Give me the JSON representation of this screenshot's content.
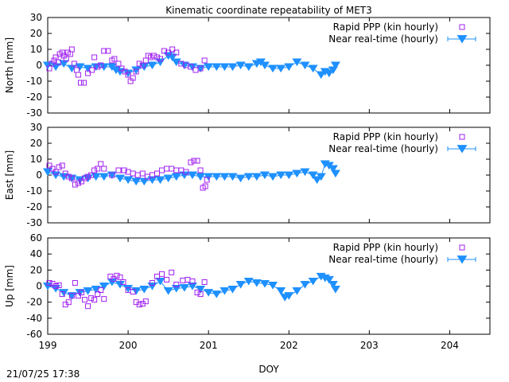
{
  "title": "Kinematic coordinate repeatability of MET3",
  "timestamp": "21/07/25 17:38",
  "xlabel": "DOY",
  "legend": {
    "ppp": "Rapid PPP (kin hourly)",
    "nrt": "Near real-time (hourly)"
  },
  "colors": {
    "ppp": "#a020f0",
    "nrt": "#1e90ff",
    "axis": "#000000"
  },
  "chart_data": [
    {
      "type": "scatter",
      "ylabel": "North [mm]",
      "xlim": [
        199,
        204.5
      ],
      "ylim": [
        -30,
        30
      ],
      "yticks": [
        -30,
        -20,
        -10,
        0,
        10,
        20,
        30
      ],
      "xticks": [
        199,
        200,
        201,
        202,
        203,
        204
      ],
      "legend_position": "top-right",
      "series": [
        {
          "name": "Rapid PPP (kin hourly)",
          "points": [
            [
              199.02,
              -2
            ],
            [
              199.05,
              1
            ],
            [
              199.08,
              3
            ],
            [
              199.1,
              5
            ],
            [
              199.13,
              2
            ],
            [
              199.15,
              7
            ],
            [
              199.18,
              8
            ],
            [
              199.2,
              6
            ],
            [
              199.23,
              4
            ],
            [
              199.25,
              8
            ],
            [
              199.28,
              7
            ],
            [
              199.3,
              10
            ],
            [
              199.33,
              1
            ],
            [
              199.36,
              -3
            ],
            [
              199.38,
              -6
            ],
            [
              199.41,
              -11
            ],
            [
              199.45,
              -11
            ],
            [
              199.5,
              -5
            ],
            [
              199.55,
              -3
            ],
            [
              199.58,
              5
            ],
            [
              199.62,
              -1
            ],
            [
              199.66,
              0
            ],
            [
              199.7,
              9
            ],
            [
              199.75,
              9
            ],
            [
              199.8,
              3
            ],
            [
              199.83,
              4
            ],
            [
              199.88,
              1
            ],
            [
              199.92,
              -2
            ],
            [
              199.96,
              -4
            ],
            [
              200.0,
              -6
            ],
            [
              200.03,
              -10
            ],
            [
              200.06,
              -8
            ],
            [
              200.1,
              -4
            ],
            [
              200.14,
              1
            ],
            [
              200.18,
              0
            ],
            [
              200.22,
              3
            ],
            [
              200.25,
              6
            ],
            [
              200.28,
              5
            ],
            [
              200.32,
              6
            ],
            [
              200.36,
              5
            ],
            [
              200.4,
              4
            ],
            [
              200.45,
              9
            ],
            [
              200.5,
              8
            ],
            [
              200.55,
              10
            ],
            [
              200.6,
              8
            ],
            [
              200.66,
              1
            ],
            [
              200.72,
              0
            ],
            [
              200.78,
              -1
            ],
            [
              200.84,
              -3
            ],
            [
              200.9,
              -2
            ],
            [
              200.95,
              3
            ]
          ]
        },
        {
          "name": "Near real-time (hourly)",
          "points": [
            [
              199.0,
              0
            ],
            [
              199.1,
              -1
            ],
            [
              199.2,
              1
            ],
            [
              199.3,
              -2
            ],
            [
              199.4,
              -1
            ],
            [
              199.5,
              -2
            ],
            [
              199.6,
              -1
            ],
            [
              199.7,
              -1
            ],
            [
              199.8,
              -1
            ],
            [
              199.85,
              -3
            ],
            [
              199.9,
              -4
            ],
            [
              200.0,
              -5
            ],
            [
              200.1,
              -3
            ],
            [
              200.2,
              -1
            ],
            [
              200.3,
              0
            ],
            [
              200.4,
              2
            ],
            [
              200.5,
              6
            ],
            [
              200.55,
              5
            ],
            [
              200.6,
              2
            ],
            [
              200.7,
              0
            ],
            [
              200.8,
              -1
            ],
            [
              200.9,
              -2
            ],
            [
              201.0,
              -1
            ],
            [
              201.1,
              -1
            ],
            [
              201.2,
              -1
            ],
            [
              201.3,
              -1
            ],
            [
              201.4,
              0
            ],
            [
              201.5,
              -1
            ],
            [
              201.6,
              1
            ],
            [
              201.65,
              2
            ],
            [
              201.7,
              0
            ],
            [
              201.8,
              -2
            ],
            [
              201.9,
              -2
            ],
            [
              202.0,
              -1
            ],
            [
              202.1,
              2
            ],
            [
              202.2,
              0
            ],
            [
              202.3,
              -2
            ],
            [
              202.4,
              -6
            ],
            [
              202.45,
              -4
            ],
            [
              202.5,
              -5
            ],
            [
              202.55,
              -3
            ],
            [
              202.58,
              0
            ]
          ]
        }
      ]
    },
    {
      "type": "scatter",
      "ylabel": "East [mm]",
      "xlim": [
        199,
        204.5
      ],
      "ylim": [
        -30,
        30
      ],
      "yticks": [
        -30,
        -20,
        -10,
        0,
        10,
        20,
        30
      ],
      "xticks": [
        199,
        200,
        201,
        202,
        203,
        204
      ],
      "legend_position": "top-right",
      "series": [
        {
          "name": "Rapid PPP (kin hourly)",
          "points": [
            [
              199.02,
              6
            ],
            [
              199.06,
              4
            ],
            [
              199.1,
              2
            ],
            [
              199.14,
              5
            ],
            [
              199.18,
              6
            ],
            [
              199.22,
              1
            ],
            [
              199.26,
              -1
            ],
            [
              199.3,
              -2
            ],
            [
              199.34,
              -6
            ],
            [
              199.38,
              -5
            ],
            [
              199.42,
              -4
            ],
            [
              199.46,
              -2
            ],
            [
              199.5,
              -1
            ],
            [
              199.54,
              0
            ],
            [
              199.58,
              3
            ],
            [
              199.62,
              4
            ],
            [
              199.66,
              7
            ],
            [
              199.7,
              4
            ],
            [
              199.8,
              0
            ],
            [
              199.88,
              3
            ],
            [
              199.95,
              3
            ],
            [
              200.0,
              2
            ],
            [
              200.06,
              1
            ],
            [
              200.12,
              0
            ],
            [
              200.18,
              1
            ],
            [
              200.24,
              -1
            ],
            [
              200.3,
              0
            ],
            [
              200.36,
              1
            ],
            [
              200.42,
              3
            ],
            [
              200.48,
              4
            ],
            [
              200.54,
              4
            ],
            [
              200.6,
              3
            ],
            [
              200.66,
              3
            ],
            [
              200.72,
              2
            ],
            [
              200.78,
              8
            ],
            [
              200.82,
              9
            ],
            [
              200.86,
              9
            ],
            [
              200.9,
              3
            ],
            [
              200.93,
              -8
            ],
            [
              200.96,
              -7
            ],
            [
              200.98,
              -3
            ]
          ]
        },
        {
          "name": "Near real-time (hourly)",
          "points": [
            [
              199.0,
              2
            ],
            [
              199.1,
              0
            ],
            [
              199.2,
              -1
            ],
            [
              199.3,
              -2
            ],
            [
              199.4,
              -3
            ],
            [
              199.5,
              -2
            ],
            [
              199.6,
              -1
            ],
            [
              199.7,
              -1
            ],
            [
              199.8,
              0
            ],
            [
              199.9,
              -2
            ],
            [
              200.0,
              -3
            ],
            [
              200.1,
              -4
            ],
            [
              200.2,
              -4
            ],
            [
              200.3,
              -3
            ],
            [
              200.4,
              -3
            ],
            [
              200.5,
              -2
            ],
            [
              200.6,
              -1
            ],
            [
              200.7,
              0
            ],
            [
              200.8,
              0
            ],
            [
              200.9,
              -1
            ],
            [
              201.0,
              -1
            ],
            [
              201.1,
              -1
            ],
            [
              201.2,
              -1
            ],
            [
              201.3,
              -1
            ],
            [
              201.4,
              -2
            ],
            [
              201.5,
              -1
            ],
            [
              201.6,
              -1
            ],
            [
              201.7,
              0
            ],
            [
              201.8,
              -1
            ],
            [
              201.9,
              0
            ],
            [
              202.0,
              0
            ],
            [
              202.1,
              1
            ],
            [
              202.2,
              2
            ],
            [
              202.3,
              0
            ],
            [
              202.35,
              -3
            ],
            [
              202.4,
              -1
            ],
            [
              202.45,
              7
            ],
            [
              202.5,
              6
            ],
            [
              202.55,
              4
            ],
            [
              202.58,
              1
            ]
          ]
        }
      ]
    },
    {
      "type": "scatter",
      "ylabel": "Up [mm]",
      "xlim": [
        199,
        204.5
      ],
      "ylim": [
        -60,
        60
      ],
      "yticks": [
        -60,
        -40,
        -20,
        0,
        20,
        40,
        60
      ],
      "xticks": [
        199,
        200,
        201,
        202,
        203,
        204
      ],
      "legend_position": "top-right",
      "series": [
        {
          "name": "Rapid PPP (kin hourly)",
          "points": [
            [
              199.02,
              4
            ],
            [
              199.06,
              3
            ],
            [
              199.1,
              0
            ],
            [
              199.14,
              1
            ],
            [
              199.18,
              -10
            ],
            [
              199.22,
              -23
            ],
            [
              199.26,
              -20
            ],
            [
              199.3,
              -12
            ],
            [
              199.34,
              4
            ],
            [
              199.38,
              -12
            ],
            [
              199.42,
              -8
            ],
            [
              199.46,
              -17
            ],
            [
              199.5,
              -25
            ],
            [
              199.54,
              -15
            ],
            [
              199.58,
              -17
            ],
            [
              199.62,
              -10
            ],
            [
              199.66,
              -5
            ],
            [
              199.7,
              -16
            ],
            [
              199.78,
              12
            ],
            [
              199.82,
              9
            ],
            [
              199.86,
              13
            ],
            [
              199.9,
              11
            ],
            [
              199.94,
              5
            ],
            [
              200.0,
              -5
            ],
            [
              200.06,
              -7
            ],
            [
              200.1,
              -20
            ],
            [
              200.14,
              -23
            ],
            [
              200.18,
              -22
            ],
            [
              200.22,
              -19
            ],
            [
              200.3,
              4
            ],
            [
              200.36,
              12
            ],
            [
              200.42,
              15
            ],
            [
              200.48,
              8
            ],
            [
              200.54,
              17
            ],
            [
              200.6,
              2
            ],
            [
              200.68,
              7
            ],
            [
              200.74,
              8
            ],
            [
              200.8,
              6
            ],
            [
              200.86,
              -8
            ],
            [
              200.9,
              -10
            ],
            [
              200.95,
              5
            ]
          ]
        },
        {
          "name": "Near real-time (hourly)",
          "points": [
            [
              199.0,
              0
            ],
            [
              199.1,
              -3
            ],
            [
              199.2,
              -8
            ],
            [
              199.3,
              -12
            ],
            [
              199.4,
              -8
            ],
            [
              199.5,
              -6
            ],
            [
              199.6,
              -4
            ],
            [
              199.7,
              0
            ],
            [
              199.8,
              5
            ],
            [
              199.9,
              2
            ],
            [
              200.0,
              -3
            ],
            [
              200.1,
              -6
            ],
            [
              200.2,
              -4
            ],
            [
              200.3,
              0
            ],
            [
              200.4,
              6
            ],
            [
              200.5,
              -6
            ],
            [
              200.6,
              -3
            ],
            [
              200.7,
              -2
            ],
            [
              200.8,
              0
            ],
            [
              200.9,
              -4
            ],
            [
              201.0,
              -8
            ],
            [
              201.1,
              -10
            ],
            [
              201.2,
              -6
            ],
            [
              201.3,
              -4
            ],
            [
              201.4,
              2
            ],
            [
              201.5,
              6
            ],
            [
              201.6,
              4
            ],
            [
              201.7,
              3
            ],
            [
              201.8,
              1
            ],
            [
              201.9,
              -6
            ],
            [
              201.95,
              -14
            ],
            [
              202.0,
              -12
            ],
            [
              202.1,
              -6
            ],
            [
              202.2,
              2
            ],
            [
              202.3,
              6
            ],
            [
              202.4,
              12
            ],
            [
              202.45,
              10
            ],
            [
              202.5,
              8
            ],
            [
              202.55,
              2
            ],
            [
              202.58,
              -4
            ]
          ]
        }
      ]
    }
  ]
}
